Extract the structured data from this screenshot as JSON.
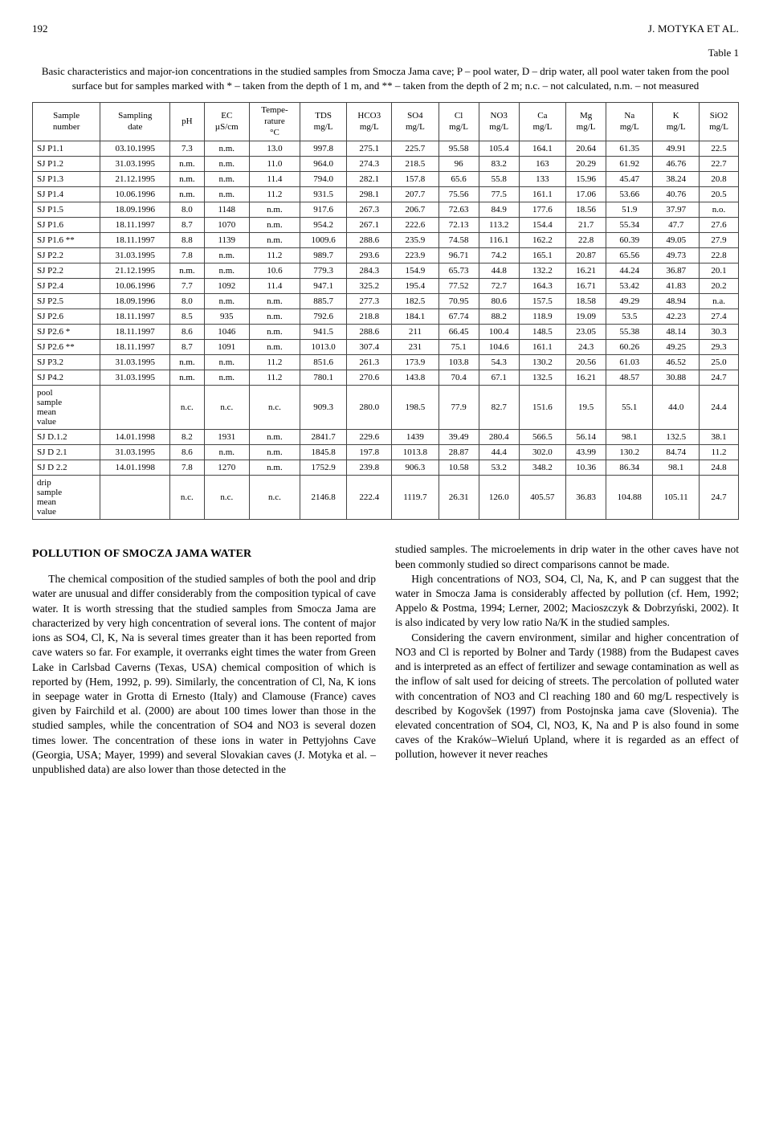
{
  "page_number": "192",
  "running_head": "J. MOTYKA ET AL.",
  "table_label": "Table 1",
  "table_caption": "Basic characteristics and major-ion concentrations in the studied samples from Smocza Jama cave;\nP – pool water, D – drip water, all pool water taken from the pool surface but for samples marked with * – taken from the depth of 1 m, and ** – taken from the depth of 2 m; n.c. – not calculated, n.m. – not measured",
  "table": {
    "columns": [
      "Sample\nnumber",
      "Sampling\ndate",
      "pH",
      "EC\nµS/cm",
      "Tempe-\nrature\n°C",
      "TDS\nmg/L",
      "HCO3\nmg/L",
      "SO4\nmg/L",
      "Cl\nmg/L",
      "NO3\nmg/L",
      "Ca\nmg/L",
      "Mg\nmg/L",
      "Na\nmg/L",
      "K\nmg/L",
      "SiO2\nmg/L"
    ],
    "rows": [
      [
        "SJ P1.1",
        "03.10.1995",
        "7.3",
        "n.m.",
        "13.0",
        "997.8",
        "275.1",
        "225.7",
        "95.58",
        "105.4",
        "164.1",
        "20.64",
        "61.35",
        "49.91",
        "22.5"
      ],
      [
        "SJ P1.2",
        "31.03.1995",
        "n.m.",
        "n.m.",
        "11.0",
        "964.0",
        "274.3",
        "218.5",
        "96",
        "83.2",
        "163",
        "20.29",
        "61.92",
        "46.76",
        "22.7"
      ],
      [
        "SJ P1.3",
        "21.12.1995",
        "n.m.",
        "n.m.",
        "11.4",
        "794.0",
        "282.1",
        "157.8",
        "65.6",
        "55.8",
        "133",
        "15.96",
        "45.47",
        "38.24",
        "20.8"
      ],
      [
        "SJ P1.4",
        "10.06.1996",
        "n.m.",
        "n.m.",
        "11.2",
        "931.5",
        "298.1",
        "207.7",
        "75.56",
        "77.5",
        "161.1",
        "17.06",
        "53.66",
        "40.76",
        "20.5"
      ],
      [
        "SJ P1.5",
        "18.09.1996",
        "8.0",
        "1148",
        "n.m.",
        "917.6",
        "267.3",
        "206.7",
        "72.63",
        "84.9",
        "177.6",
        "18.56",
        "51.9",
        "37.97",
        "n.o."
      ],
      [
        "SJ P1.6",
        "18.11.1997",
        "8.7",
        "1070",
        "n.m.",
        "954.2",
        "267.1",
        "222.6",
        "72.13",
        "113.2",
        "154.4",
        "21.7",
        "55.34",
        "47.7",
        "27.6"
      ],
      [
        "SJ P1.6  **",
        "18.11.1997",
        "8.8",
        "1139",
        "n.m.",
        "1009.6",
        "288.6",
        "235.9",
        "74.58",
        "116.1",
        "162.2",
        "22.8",
        "60.39",
        "49.05",
        "27.9"
      ],
      [
        "SJ P2.2",
        "31.03.1995",
        "7.8",
        "n.m.",
        "11.2",
        "989.7",
        "293.6",
        "223.9",
        "96.71",
        "74.2",
        "165.1",
        "20.87",
        "65.56",
        "49.73",
        "22.8"
      ],
      [
        "SJ P2.2",
        "21.12.1995",
        "n.m.",
        "n.m.",
        "10.6",
        "779.3",
        "284.3",
        "154.9",
        "65.73",
        "44.8",
        "132.2",
        "16.21",
        "44.24",
        "36.87",
        "20.1"
      ],
      [
        "SJ P2.4",
        "10.06.1996",
        "7.7",
        "1092",
        "11.4",
        "947.1",
        "325.2",
        "195.4",
        "77.52",
        "72.7",
        "164.3",
        "16.71",
        "53.42",
        "41.83",
        "20.2"
      ],
      [
        "SJ P2.5",
        "18.09.1996",
        "8.0",
        "n.m.",
        "n.m.",
        "885.7",
        "277.3",
        "182.5",
        "70.95",
        "80.6",
        "157.5",
        "18.58",
        "49.29",
        "48.94",
        "n.a."
      ],
      [
        "SJ P2.6",
        "18.11.1997",
        "8.5",
        "935",
        "n.m.",
        "792.6",
        "218.8",
        "184.1",
        "67.74",
        "88.2",
        "118.9",
        "19.09",
        "53.5",
        "42.23",
        "27.4"
      ],
      [
        "SJ P2.6 *",
        "18.11.1997",
        "8.6",
        "1046",
        "n.m.",
        "941.5",
        "288.6",
        "211",
        "66.45",
        "100.4",
        "148.5",
        "23.05",
        "55.38",
        "48.14",
        "30.3"
      ],
      [
        "SJ P2.6 **",
        "18.11.1997",
        "8.7",
        "1091",
        "n.m.",
        "1013.0",
        "307.4",
        "231",
        "75.1",
        "104.6",
        "161.1",
        "24.3",
        "60.26",
        "49.25",
        "29.3"
      ],
      [
        "SJ P3.2",
        "31.03.1995",
        "n.m.",
        "n.m.",
        "11.2",
        "851.6",
        "261.3",
        "173.9",
        "103.8",
        "54.3",
        "130.2",
        "20.56",
        "61.03",
        "46.52",
        "25.0"
      ],
      [
        "SJ P4.2",
        "31.03.1995",
        "n.m.",
        "n.m.",
        "11.2",
        "780.1",
        "270.6",
        "143.8",
        "70.4",
        "67.1",
        "132.5",
        "16.21",
        "48.57",
        "30.88",
        "24.7"
      ],
      [
        "pool\nsample\nmean\nvalue",
        "",
        "n.c.",
        "n.c.",
        "n.c.",
        "909.3",
        "280.0",
        "198.5",
        "77.9",
        "82.7",
        "151.6",
        "19.5",
        "55.1",
        "44.0",
        "24.4"
      ],
      [
        "SJ D.1.2",
        "14.01.1998",
        "8.2",
        "1931",
        "n.m.",
        "2841.7",
        "229.6",
        "1439",
        "39.49",
        "280.4",
        "566.5",
        "56.14",
        "98.1",
        "132.5",
        "38.1"
      ],
      [
        "SJ D 2.1",
        "31.03.1995",
        "8.6",
        "n.m.",
        "n.m.",
        "1845.8",
        "197.8",
        "1013.8",
        "28.87",
        "44.4",
        "302.0",
        "43.99",
        "130.2",
        "84.74",
        "11.2"
      ],
      [
        "SJ D 2.2",
        "14.01.1998",
        "7.8",
        "1270",
        "n.m.",
        "1752.9",
        "239.8",
        "906.3",
        "10.58",
        "53.2",
        "348.2",
        "10.36",
        "86.34",
        "98.1",
        "24.8"
      ],
      [
        "drip\nsample\nmean\nvalue",
        "",
        "n.c.",
        "n.c.",
        "n.c.",
        "2146.8",
        "222.4",
        "1119.7",
        "26.31",
        "126.0",
        "405.57",
        "36.83",
        "104.88",
        "105.11",
        "24.7"
      ]
    ]
  },
  "section_title": "POLLUTION OF SMOCZA JAMA WATER",
  "left_paragraphs": [
    "The chemical composition of the studied samples of both the pool and drip water are unusual and differ considerably from the composition typical of cave water. It is worth stressing that the studied samples from Smocza Jama are characterized by very high concentration of several ions. The content of major ions as SO4, Cl, K, Na is several times greater than it has been reported from cave waters so far. For example, it overranks eight times the water from Green Lake in Carlsbad Caverns (Texas, USA) chemical composition of which is reported by (Hem, 1992, p. 99). Similarly, the concentration of Cl, Na, K ions in seepage water in Grotta di Ernesto (Italy) and Clamouse (France) caves given by Fairchild et al. (2000) are about 100 times lower than those in the studied samples, while the concentration of SO4 and NO3 is several dozen times lower. The concentration of these ions in water in Pettyjohns Cave (Georgia, USA; Mayer, 1999) and several Slovakian caves (J. Motyka et al. – unpublished data) are also lower than those detected in the"
  ],
  "right_paragraphs": [
    "studied samples. The microelements in drip water in the other caves have not been commonly studied so direct comparisons cannot be made.",
    "High concentrations of NO3, SO4, Cl, Na, K, and P can suggest that the water in Smocza Jama is considerably affected by pollution (cf. Hem, 1992; Appelo & Postma, 1994; Lerner, 2002; Macioszczyk & Dobrzyński, 2002). It is also indicated by very low ratio Na/K in the studied samples.",
    "Considering the cavern environment, similar and higher concentration of NO3 and Cl is reported by Bolner and Tardy (1988) from the Budapest caves and is interpreted as an effect of fertilizer and sewage contamination as well as the inflow of salt used for deicing of streets. The percolation of polluted water with concentration of NO3 and Cl reaching 180 and 60 mg/L respectively is described by Kogovšek (1997) from Postojnska jama cave (Slovenia). The elevated concentration of SO4, Cl, NO3, K, Na and P is also found in some caves of the Kraków–Wieluń Upland, where it is regarded as an effect of pollution, however it never reaches"
  ]
}
